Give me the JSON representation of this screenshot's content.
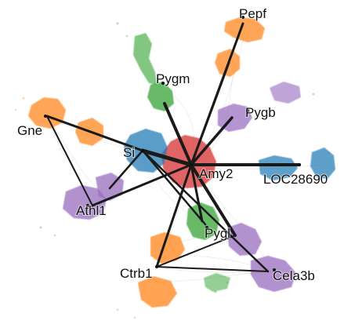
{
  "graph": {
    "colors": {
      "red": "#d62728",
      "blue": "#1f77b4",
      "green": "#2ca02c",
      "orange": "#ff7f0e",
      "purple": "#9467bd"
    },
    "nodes": [
      {
        "id": "amy2",
        "label": "Amy2"
      },
      {
        "id": "si",
        "label": "Si"
      },
      {
        "id": "pygm",
        "label": "Pygm"
      },
      {
        "id": "pepf",
        "label": "Pepf"
      },
      {
        "id": "pygb",
        "label": "Pygb"
      },
      {
        "id": "loc",
        "label": "LOC28690"
      },
      {
        "id": "gne",
        "label": "Gne"
      },
      {
        "id": "athl1",
        "label": "Athl1"
      },
      {
        "id": "pygl",
        "label": "Pygl"
      },
      {
        "id": "ctrb1",
        "label": "Ctrb1"
      },
      {
        "id": "cela3b",
        "label": "Cela3b"
      }
    ]
  }
}
